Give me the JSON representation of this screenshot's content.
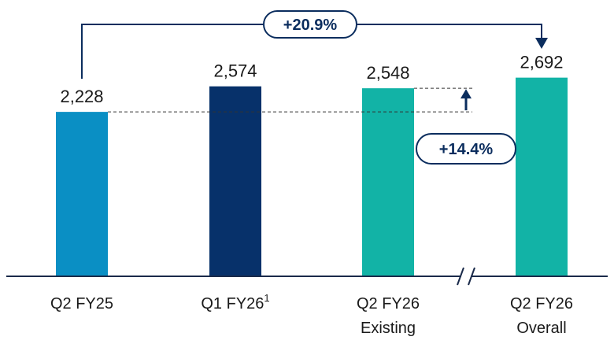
{
  "chart_data": {
    "type": "bar",
    "categories": [
      {
        "lines": [
          "Q2 FY25"
        ],
        "superscript": ""
      },
      {
        "lines": [
          "Q1 FY26"
        ],
        "superscript": "1"
      },
      {
        "lines": [
          "Q2 FY26",
          "Existing"
        ],
        "superscript": ""
      },
      {
        "lines": [
          "Q2 FY26",
          "Overall"
        ],
        "superscript": ""
      }
    ],
    "values": [
      2228,
      2574,
      2548,
      2692
    ],
    "value_labels": [
      "2,228",
      "2,574",
      "2,548",
      "2,692"
    ],
    "colors": [
      "#0a8fc4",
      "#07316a",
      "#12b3a6",
      "#12b3a6"
    ],
    "ylim": [
      0,
      2900
    ],
    "axis_break": true,
    "annotations": [
      {
        "text": "+20.9%",
        "from_category": 0,
        "to_category": 3,
        "style": "bracket-arrow"
      },
      {
        "text": "+14.4%",
        "from_category": 0,
        "to_category": 2,
        "style": "up-arrow"
      }
    ],
    "title": "",
    "xlabel": "",
    "ylabel": ""
  },
  "colors": {
    "accent_dark": "#0b2d5e",
    "axis": "#1a2a4a"
  }
}
